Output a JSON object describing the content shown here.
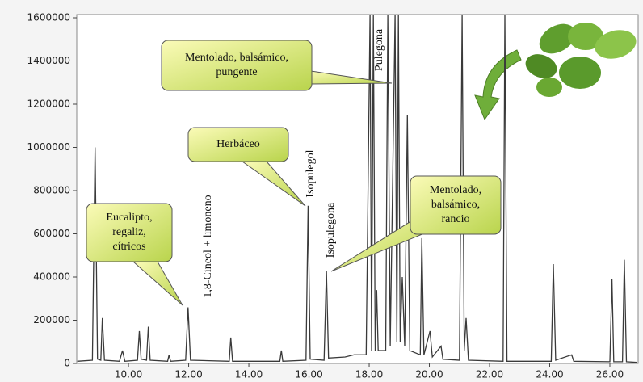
{
  "chart_data": {
    "type": "line",
    "x": [
      8.3,
      8.8,
      8.89,
      8.97,
      9.08,
      9.13,
      9.2,
      9.7,
      9.8,
      9.88,
      10.3,
      10.36,
      10.42,
      10.6,
      10.66,
      10.72,
      11.3,
      11.35,
      11.4,
      11.9,
      11.98,
      12.06,
      13.35,
      13.4,
      13.46,
      15.03,
      15.08,
      15.13,
      15.9,
      15.97,
      16.04,
      16.5,
      16.58,
      16.65,
      17.2,
      17.5,
      17.9,
      18.03,
      18.08,
      18.14,
      18.2,
      18.25,
      18.3,
      18.55,
      18.62,
      18.7,
      18.86,
      18.92,
      18.97,
      19.03,
      19.1,
      19.18,
      19.27,
      19.35,
      19.7,
      19.75,
      19.82,
      20.02,
      20.1,
      20.39,
      20.45,
      21.0,
      21.09,
      21.16,
      21.22,
      21.3,
      22.45,
      22.51,
      22.58,
      24.05,
      24.12,
      24.2,
      24.73,
      24.8,
      26.0,
      26.07,
      26.13,
      26.42,
      26.48,
      26.55,
      26.9
    ],
    "values": [
      10000,
      15000,
      1000000,
      20000,
      15000,
      210000,
      15000,
      10000,
      60000,
      10000,
      15000,
      150000,
      20000,
      15000,
      170000,
      15000,
      10000,
      40000,
      10000,
      15000,
      260000,
      15000,
      10000,
      120000,
      10000,
      10000,
      60000,
      10000,
      15000,
      730000,
      20000,
      15000,
      430000,
      25000,
      30000,
      40000,
      40000,
      1615000,
      60000,
      1615000,
      60000,
      340000,
      60000,
      60000,
      1615000,
      80000,
      1615000,
      100000,
      1615000,
      100000,
      400000,
      80000,
      1150000,
      60000,
      40000,
      580000,
      40000,
      150000,
      30000,
      80000,
      20000,
      15000,
      1615000,
      60000,
      210000,
      15000,
      10000,
      1615000,
      10000,
      10000,
      460000,
      15000,
      40000,
      10000,
      8000,
      390000,
      8000,
      8000,
      480000,
      8000,
      5000
    ],
    "color": "#3a3a3a",
    "xlim": [
      8.28,
      26.94
    ],
    "ylim": [
      0,
      1615000
    ],
    "yticks": [
      0,
      200000,
      400000,
      600000,
      800000,
      1000000,
      1200000,
      1400000,
      1600000
    ],
    "xticks": [
      {
        "value": 10,
        "label": "10.00"
      },
      {
        "value": 12,
        "label": "12.00"
      },
      {
        "value": 14,
        "label": "14.00"
      },
      {
        "value": 16,
        "label": "16.00"
      },
      {
        "value": 18,
        "label": "18.00"
      },
      {
        "value": 20,
        "label": "20.00"
      },
      {
        "value": 22,
        "label": "22.00"
      },
      {
        "value": 24,
        "label": "24.00"
      },
      {
        "value": 26,
        "label": "26.00"
      }
    ],
    "peak_labels": [
      "1,8-Cineol + limoneno",
      "Isopulegol",
      "Isopulegona",
      "Pulegona"
    ],
    "callouts": [
      {
        "lines": [
          "Eucalipto,",
          "regaliz,",
          "cítricos"
        ]
      },
      {
        "lines": [
          "Herbáceo"
        ]
      },
      {
        "lines": [
          "Mentolado, balsámico,",
          "pungente"
        ]
      },
      {
        "lines": [
          "Mentolado,",
          "balsámico,",
          "rancio"
        ]
      }
    ]
  }
}
